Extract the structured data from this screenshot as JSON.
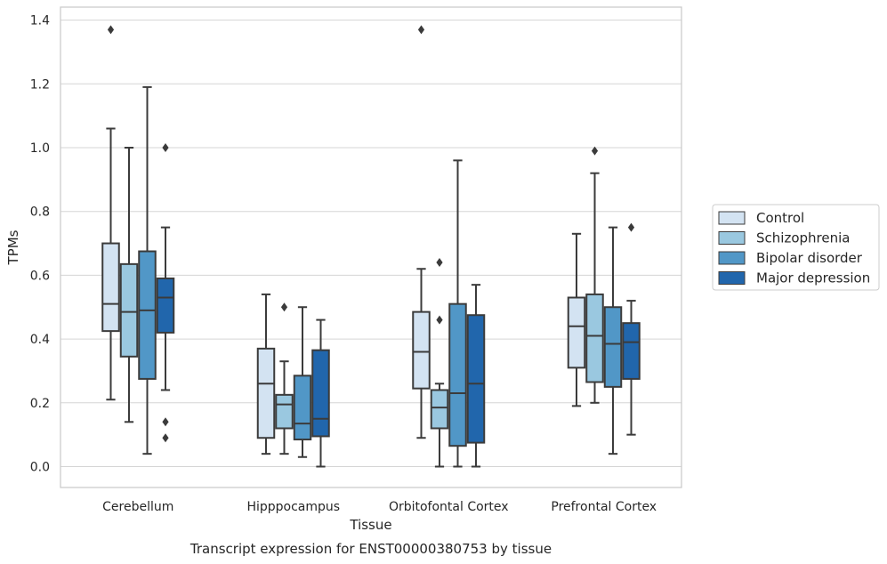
{
  "chart_data": {
    "type": "box",
    "title": "",
    "xlabel": "Tissue",
    "ylabel": "TPMs",
    "caption": "Transcript expression for ENST00000380753 by tissue",
    "categories": [
      "Cerebellum",
      "Hipppocampus",
      "Orbitofontal Cortex",
      "Prefrontal Cortex"
    ],
    "ylim": [
      -0.065,
      1.44
    ],
    "yticks": [
      "0.0",
      "0.2",
      "0.4",
      "0.6",
      "0.8",
      "1.0",
      "1.2",
      "1.4"
    ],
    "grid": true,
    "legend_position": "right",
    "series": [
      {
        "name": "Control",
        "color": "#d3e3f2",
        "boxes": [
          {
            "q1": 0.425,
            "median": 0.51,
            "q3": 0.7,
            "whisker_low": 0.21,
            "whisker_high": 1.06,
            "outliers": [
              1.37
            ]
          },
          {
            "q1": 0.09,
            "median": 0.26,
            "q3": 0.37,
            "whisker_low": 0.04,
            "whisker_high": 0.54,
            "outliers": []
          },
          {
            "q1": 0.245,
            "median": 0.36,
            "q3": 0.485,
            "whisker_low": 0.09,
            "whisker_high": 0.62,
            "outliers": [
              1.37
            ]
          },
          {
            "q1": 0.31,
            "median": 0.44,
            "q3": 0.53,
            "whisker_low": 0.19,
            "whisker_high": 0.73,
            "outliers": []
          }
        ]
      },
      {
        "name": "Schizophrenia",
        "color": "#9ac8e0",
        "boxes": [
          {
            "q1": 0.345,
            "median": 0.485,
            "q3": 0.635,
            "whisker_low": 0.14,
            "whisker_high": 1.0,
            "outliers": []
          },
          {
            "q1": 0.12,
            "median": 0.195,
            "q3": 0.225,
            "whisker_low": 0.04,
            "whisker_high": 0.33,
            "outliers": [
              0.5
            ]
          },
          {
            "q1": 0.12,
            "median": 0.185,
            "q3": 0.24,
            "whisker_low": 0.0,
            "whisker_high": 0.26,
            "outliers": [
              0.46,
              0.64
            ]
          },
          {
            "q1": 0.265,
            "median": 0.41,
            "q3": 0.54,
            "whisker_low": 0.2,
            "whisker_high": 0.92,
            "outliers": [
              0.99
            ]
          }
        ]
      },
      {
        "name": "Bipolar disorder",
        "color": "#5197c7",
        "boxes": [
          {
            "q1": 0.275,
            "median": 0.49,
            "q3": 0.675,
            "whisker_low": 0.04,
            "whisker_high": 1.19,
            "outliers": []
          },
          {
            "q1": 0.085,
            "median": 0.135,
            "q3": 0.285,
            "whisker_low": 0.03,
            "whisker_high": 0.5,
            "outliers": []
          },
          {
            "q1": 0.065,
            "median": 0.23,
            "q3": 0.51,
            "whisker_low": 0.0,
            "whisker_high": 0.96,
            "outliers": []
          },
          {
            "q1": 0.25,
            "median": 0.385,
            "q3": 0.5,
            "whisker_low": 0.04,
            "whisker_high": 0.75,
            "outliers": []
          }
        ]
      },
      {
        "name": "Major depression",
        "color": "#2166ac",
        "boxes": [
          {
            "q1": 0.42,
            "median": 0.53,
            "q3": 0.59,
            "whisker_low": 0.24,
            "whisker_high": 0.75,
            "outliers": [
              1.0,
              0.14,
              0.09
            ]
          },
          {
            "q1": 0.095,
            "median": 0.15,
            "q3": 0.365,
            "whisker_low": 0.0,
            "whisker_high": 0.46,
            "outliers": []
          },
          {
            "q1": 0.075,
            "median": 0.26,
            "q3": 0.475,
            "whisker_low": 0.0,
            "whisker_high": 0.57,
            "outliers": []
          },
          {
            "q1": 0.275,
            "median": 0.39,
            "q3": 0.45,
            "whisker_low": 0.1,
            "whisker_high": 0.52,
            "outliers": [
              0.75
            ]
          }
        ]
      }
    ]
  }
}
